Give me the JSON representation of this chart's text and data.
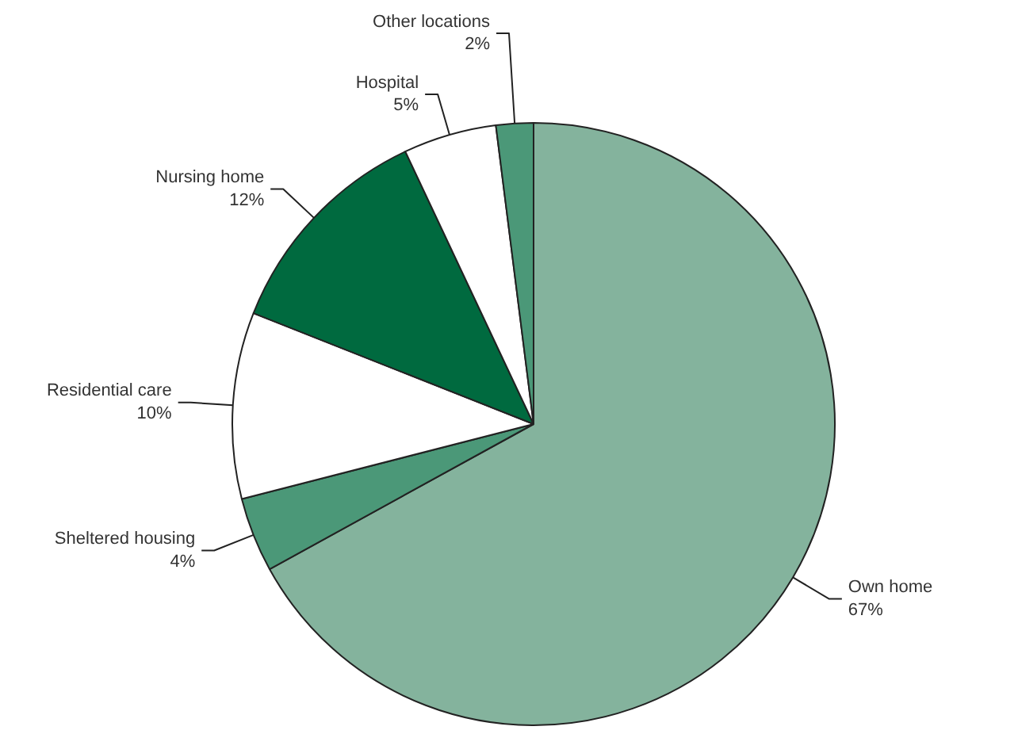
{
  "chart_data": {
    "type": "pie",
    "categories": [
      "Own home",
      "Sheltered housing",
      "Residential care",
      "Nursing home",
      "Hospital",
      "Other locations"
    ],
    "values": [
      67,
      4,
      10,
      12,
      5,
      2
    ],
    "value_labels": [
      "67%",
      "4%",
      "10%",
      "12%",
      "5%",
      "2%"
    ],
    "colors": [
      "#84b39d",
      "#4b9878",
      "#ffffff",
      "#006a3f",
      "#ffffff",
      "#4b9878"
    ]
  }
}
